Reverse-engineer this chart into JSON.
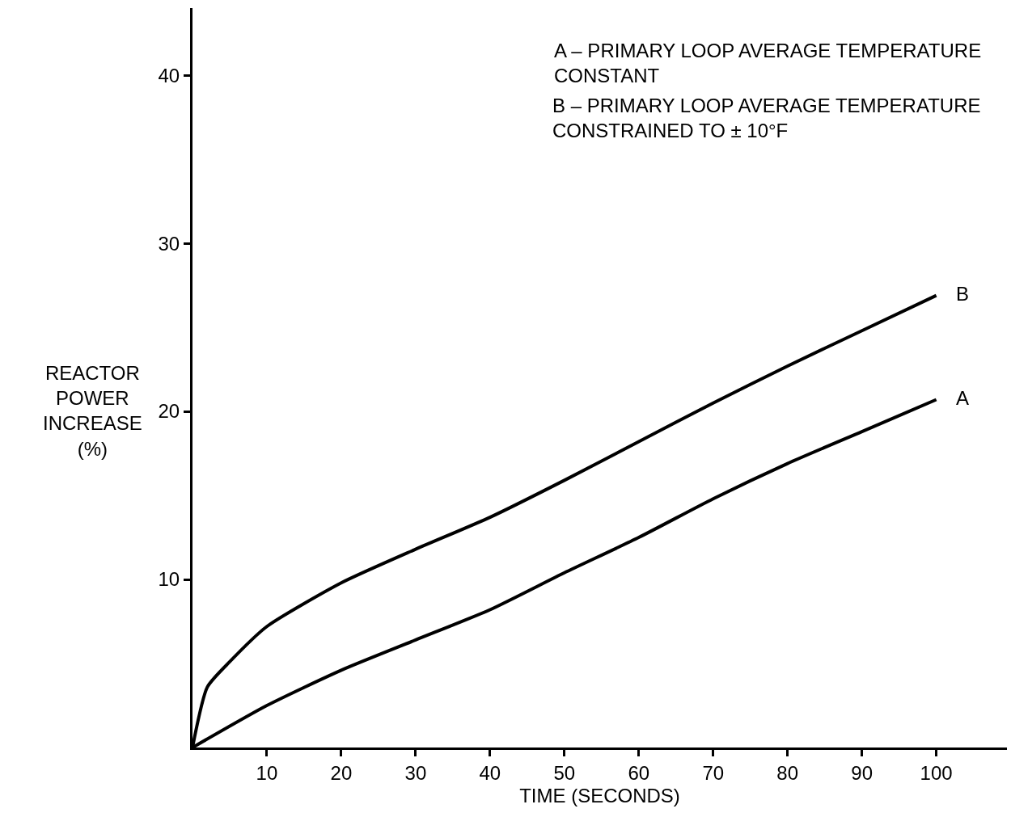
{
  "chart_data": {
    "type": "line",
    "xlabel": "TIME (SECONDS)",
    "ylabel": "REACTOR POWER INCREASE (%)",
    "x": [
      0,
      2,
      5,
      10,
      20,
      30,
      40,
      50,
      60,
      70,
      80,
      90,
      100
    ],
    "series": [
      {
        "name": "A",
        "color": "#000000",
        "x": [
          0,
          10,
          20,
          30,
          40,
          50,
          60,
          70,
          80,
          90,
          100
        ],
        "values": [
          0,
          2.5,
          4.6,
          6.4,
          8.2,
          10.4,
          12.5,
          14.8,
          16.9,
          18.8,
          20.7
        ]
      },
      {
        "name": "B",
        "color": "#000000",
        "values": [
          0,
          3.6,
          5.1,
          7.2,
          9.8,
          11.8,
          13.7,
          15.9,
          18.2,
          20.5,
          22.7,
          24.8,
          26.9
        ]
      }
    ],
    "xlim": [
      0,
      109.5
    ],
    "ylim": [
      0,
      44
    ],
    "xticks": [
      10,
      20,
      30,
      40,
      50,
      60,
      70,
      80,
      90,
      100
    ],
    "yticks": [
      10,
      20,
      30,
      40
    ],
    "grid": false,
    "legend": false,
    "marker": "none",
    "line_style": "solid",
    "annotations": [
      "A – PRIMARY LOOP AVERAGE TEMPERATURE CONSTANT",
      "B – PRIMARY LOOP AVERAGE TEMPERATURE CONSTRAINED TO ± 10°F"
    ]
  }
}
